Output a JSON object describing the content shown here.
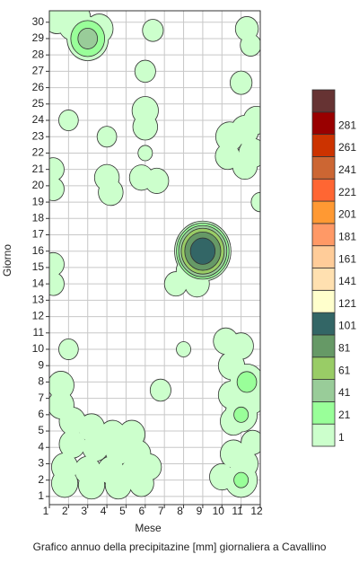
{
  "chart_data": {
    "type": "contour",
    "title": "Grafico annuo della precipitazine [mm] giornaliera a Cavallino",
    "xlabel": "Mese",
    "ylabel": "Giorno",
    "xlim": [
      1,
      12
    ],
    "xticks": [
      1,
      2,
      3,
      4,
      5,
      6,
      7,
      8,
      9,
      10,
      11,
      12
    ],
    "ylim": [
      0.5,
      30.7
    ],
    "yticks": [
      1,
      2,
      3,
      4,
      5,
      6,
      7,
      8,
      9,
      10,
      11,
      12,
      13,
      14,
      15,
      16,
      17,
      18,
      19,
      20,
      21,
      22,
      23,
      24,
      25,
      26,
      27,
      28,
      29,
      30
    ],
    "grid": true,
    "x": [
      1.4,
      2.2,
      3,
      3.6,
      2.5,
      6.4,
      11.3,
      11.5,
      6,
      11,
      6,
      6,
      2,
      4,
      6,
      10.4,
      11.2,
      11.8,
      11.6,
      10.3,
      11.2,
      1.2,
      1.2,
      4,
      4.2,
      5.8,
      6.6,
      12,
      9,
      8.3,
      8.7,
      7.6,
      1.2,
      1.2,
      2,
      8,
      10.2,
      11,
      10.5,
      11.3,
      10.5,
      10.6,
      11,
      11.6,
      6.8,
      1.6,
      1.6,
      2.2,
      3.2,
      4.3,
      5.3,
      2.2,
      3.4,
      4.6,
      5.6,
      1.8,
      3,
      4.2,
      5.4,
      6.2,
      1.8,
      3.2,
      4.6,
      5.8,
      10.6,
      11.2,
      11,
      10,
      11.6
    ],
    "y": [
      30.2,
      29.8,
      29,
      29.6,
      30.3,
      29.5,
      29.6,
      28.6,
      27,
      26.3,
      24.6,
      23.6,
      24,
      23,
      22,
      23,
      23.4,
      24,
      22,
      21.8,
      21.2,
      21,
      19.8,
      20.5,
      19.6,
      20.5,
      20.3,
      19,
      16,
      14.8,
      14,
      14,
      15.2,
      14,
      10,
      10,
      10.5,
      10.2,
      9,
      8,
      7.2,
      5.6,
      6,
      6.8,
      7.5,
      7.8,
      6.6,
      5.6,
      5.2,
      4.8,
      4.8,
      4.2,
      4,
      3.8,
      3.6,
      2.8,
      2.6,
      2.6,
      2.5,
      2.8,
      1.8,
      1.7,
      1.7,
      1.8,
      3.6,
      3,
      2,
      2.2,
      4.3
    ],
    "values": [
      14,
      14,
      45,
      14,
      10,
      6,
      8,
      6,
      6,
      7,
      12,
      10,
      5,
      5,
      2,
      14,
      14,
      12,
      14,
      10,
      10,
      7,
      7,
      10,
      10,
      9,
      9,
      4,
      110,
      12,
      10,
      8,
      7,
      7,
      5,
      2,
      10,
      10,
      12,
      25,
      12,
      12,
      22,
      8,
      6,
      12,
      12,
      12,
      12,
      12,
      12,
      12,
      12,
      12,
      12,
      12,
      12,
      12,
      12,
      10,
      12,
      12,
      12,
      10,
      12,
      12,
      22,
      10,
      8
    ],
    "colorbar": {
      "levels": [
        1,
        21,
        41,
        61,
        81,
        101,
        121,
        141,
        161,
        181,
        201,
        221,
        241,
        261,
        281,
        null
      ],
      "colors": [
        "#ccffcc",
        "#99ff99",
        "#99cc99",
        "#99cc66",
        "#669966",
        "#336666",
        "#ffffcc",
        "#ffe0b0",
        "#ffcc99",
        "#ff9966",
        "#ff9933",
        "#ff6633",
        "#cc6633",
        "#cc3300",
        "#990000",
        "#663333"
      ]
    }
  }
}
